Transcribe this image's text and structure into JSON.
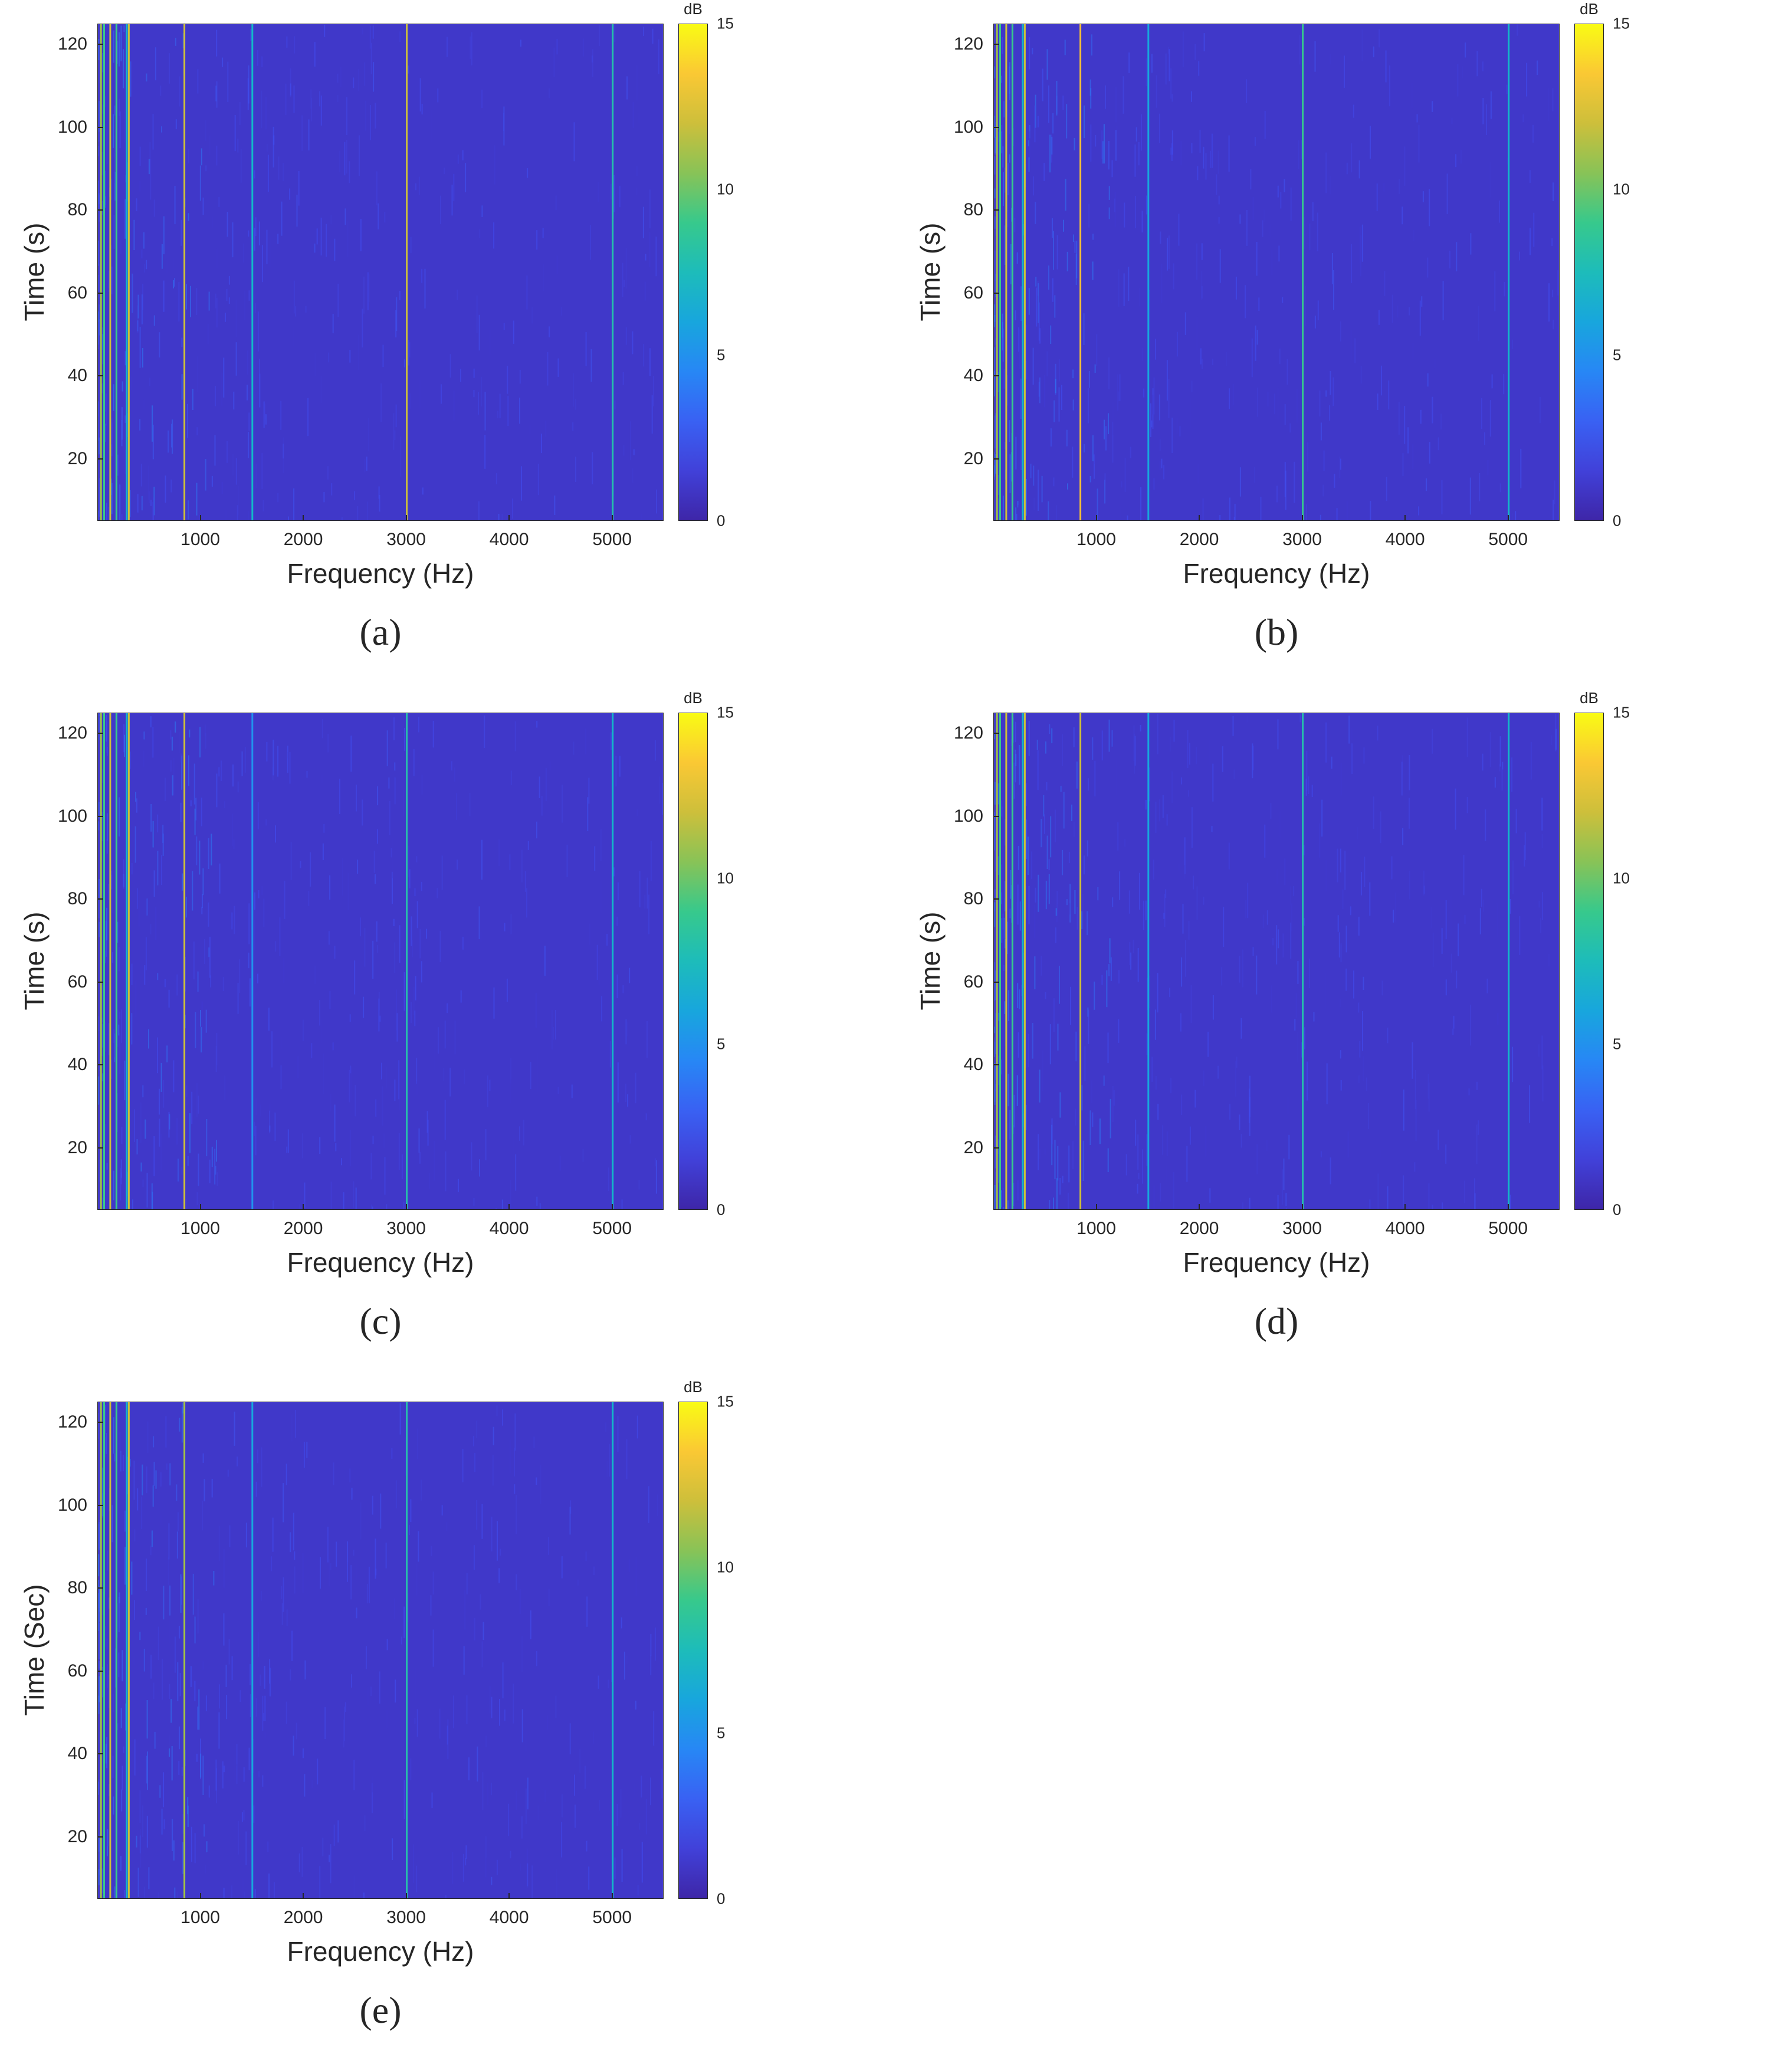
{
  "chart_data": [
    {
      "type": "heatmap",
      "caption": "(a)",
      "xlabel": "Frequency (Hz)",
      "ylabel": "Time (s)",
      "xlim": [
        0,
        5500
      ],
      "ylim": [
        5,
        125
      ],
      "xticks": [
        1000,
        2000,
        3000,
        4000,
        5000
      ],
      "yticks": [
        20,
        40,
        60,
        80,
        100,
        120
      ],
      "colorbar": {
        "label": "dB",
        "range": [
          0,
          15
        ],
        "ticks": [
          0,
          5,
          10,
          15
        ],
        "colormap": "parula"
      },
      "background_db": 1,
      "lines": [
        {
          "freq": 30,
          "db": 11
        },
        {
          "freq": 60,
          "db": 9
        },
        {
          "freq": 120,
          "db": 12
        },
        {
          "freq": 180,
          "db": 9
        },
        {
          "freq": 280,
          "db": 7
        },
        {
          "freq": 300,
          "db": 12
        },
        {
          "freq": 840,
          "db": 12
        },
        {
          "freq": 1500,
          "db": 7
        },
        {
          "freq": 3000,
          "db": 12
        },
        {
          "freq": 5000,
          "db": 8
        }
      ]
    },
    {
      "type": "heatmap",
      "caption": "(b)",
      "xlabel": "Frequency (Hz)",
      "ylabel": "Time (s)",
      "xlim": [
        0,
        5500
      ],
      "ylim": [
        5,
        125
      ],
      "xticks": [
        1000,
        2000,
        3000,
        4000,
        5000
      ],
      "yticks": [
        20,
        40,
        60,
        80,
        100,
        120
      ],
      "colorbar": {
        "label": "dB",
        "range": [
          0,
          15
        ],
        "ticks": [
          0,
          5,
          10,
          15
        ],
        "colormap": "parula"
      },
      "background_db": 1,
      "lines": [
        {
          "freq": 30,
          "db": 11
        },
        {
          "freq": 60,
          "db": 9
        },
        {
          "freq": 120,
          "db": 12
        },
        {
          "freq": 180,
          "db": 9
        },
        {
          "freq": 280,
          "db": 7
        },
        {
          "freq": 300,
          "db": 12
        },
        {
          "freq": 840,
          "db": 13
        },
        {
          "freq": 1500,
          "db": 6
        },
        {
          "freq": 3000,
          "db": 9
        },
        {
          "freq": 5000,
          "db": 7
        }
      ]
    },
    {
      "type": "heatmap",
      "caption": "(c)",
      "xlabel": "Frequency (Hz)",
      "ylabel": "Time (s)",
      "xlim": [
        0,
        5500
      ],
      "ylim": [
        5,
        125
      ],
      "xticks": [
        1000,
        2000,
        3000,
        4000,
        5000
      ],
      "yticks": [
        20,
        40,
        60,
        80,
        100,
        120
      ],
      "colorbar": {
        "label": "dB",
        "range": [
          0,
          15
        ],
        "ticks": [
          0,
          5,
          10,
          15
        ],
        "colormap": "parula"
      },
      "background_db": 1,
      "lines": [
        {
          "freq": 30,
          "db": 11
        },
        {
          "freq": 60,
          "db": 9
        },
        {
          "freq": 120,
          "db": 12
        },
        {
          "freq": 180,
          "db": 9
        },
        {
          "freq": 280,
          "db": 7
        },
        {
          "freq": 300,
          "db": 12
        },
        {
          "freq": 840,
          "db": 12
        },
        {
          "freq": 1500,
          "db": 5
        },
        {
          "freq": 3000,
          "db": 8
        },
        {
          "freq": 5000,
          "db": 7
        }
      ]
    },
    {
      "type": "heatmap",
      "caption": "(d)",
      "xlabel": "Frequency (Hz)",
      "ylabel": "Time (s)",
      "xlim": [
        0,
        5500
      ],
      "ylim": [
        5,
        125
      ],
      "xticks": [
        1000,
        2000,
        3000,
        4000,
        5000
      ],
      "yticks": [
        20,
        40,
        60,
        80,
        100,
        120
      ],
      "colorbar": {
        "label": "dB",
        "range": [
          0,
          15
        ],
        "ticks": [
          0,
          5,
          10,
          15
        ],
        "colormap": "parula"
      },
      "background_db": 1,
      "lines": [
        {
          "freq": 30,
          "db": 11
        },
        {
          "freq": 60,
          "db": 9
        },
        {
          "freq": 120,
          "db": 12
        },
        {
          "freq": 180,
          "db": 9
        },
        {
          "freq": 280,
          "db": 7
        },
        {
          "freq": 300,
          "db": 12
        },
        {
          "freq": 840,
          "db": 12
        },
        {
          "freq": 1500,
          "db": 6
        },
        {
          "freq": 3000,
          "db": 8
        },
        {
          "freq": 5000,
          "db": 7
        }
      ]
    },
    {
      "type": "heatmap",
      "caption": "(e)",
      "xlabel": "Frequency (Hz)",
      "ylabel": "Time (Sec)",
      "xlim": [
        0,
        5500
      ],
      "ylim": [
        5,
        125
      ],
      "xticks": [
        1000,
        2000,
        3000,
        4000,
        5000
      ],
      "yticks": [
        20,
        40,
        60,
        80,
        100,
        120
      ],
      "colorbar": {
        "label": "dB",
        "range": [
          0,
          15
        ],
        "ticks": [
          0,
          5,
          10,
          15
        ],
        "colormap": "parula"
      },
      "background_db": 1,
      "lines": [
        {
          "freq": 30,
          "db": 11
        },
        {
          "freq": 60,
          "db": 9
        },
        {
          "freq": 120,
          "db": 12
        },
        {
          "freq": 180,
          "db": 9
        },
        {
          "freq": 280,
          "db": 7
        },
        {
          "freq": 300,
          "db": 12
        },
        {
          "freq": 840,
          "db": 11
        },
        {
          "freq": 1500,
          "db": 6
        },
        {
          "freq": 3000,
          "db": 8
        },
        {
          "freq": 5000,
          "db": 7
        }
      ]
    }
  ]
}
